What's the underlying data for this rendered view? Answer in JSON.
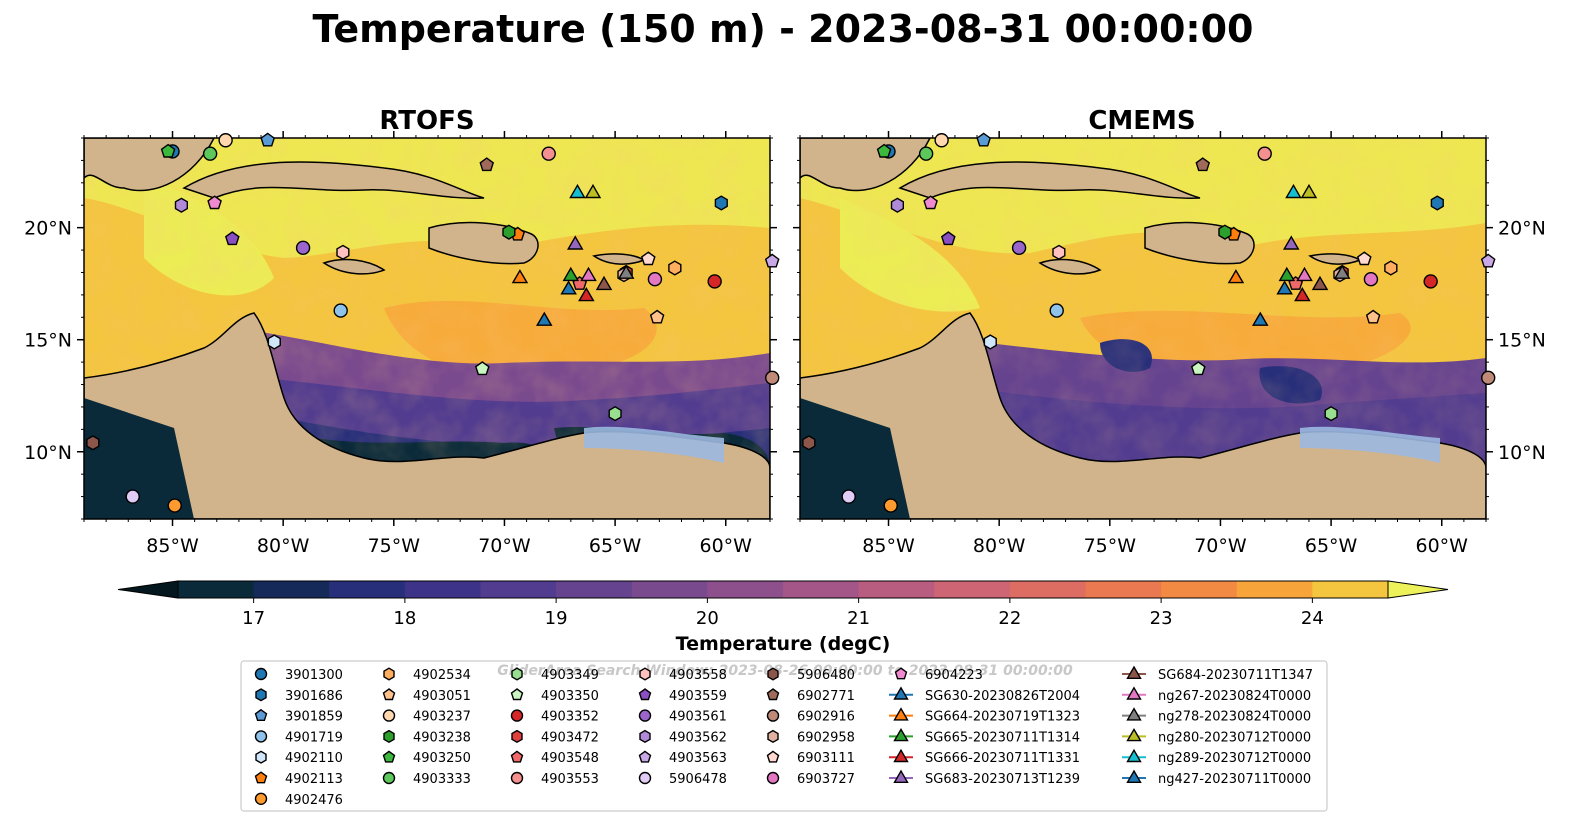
{
  "figure": {
    "title": "Temperature (150 m) - 2023-08-31 00:00:00",
    "watermark": "GliderArea Search Window: 2023-08-26 00:00:00 to 2023-08-31 00:00:00"
  },
  "panels": [
    {
      "title": "RTOFS",
      "left_axis_labels": true,
      "right_axis_labels": false
    },
    {
      "title": "CMEMS",
      "left_axis_labels": false,
      "right_axis_labels": true
    }
  ],
  "map_extent": {
    "lon": [
      -89,
      -58
    ],
    "lat": [
      7,
      24
    ]
  },
  "axes": {
    "lon_ticks": [
      {
        "lon": -85,
        "label": "85°W"
      },
      {
        "lon": -80,
        "label": "80°W"
      },
      {
        "lon": -75,
        "label": "75°W"
      },
      {
        "lon": -70,
        "label": "70°W"
      },
      {
        "lon": -65,
        "label": "65°W"
      },
      {
        "lon": -60,
        "label": "60°W"
      }
    ],
    "lat_ticks": [
      {
        "lat": 20,
        "label": "20°N"
      },
      {
        "lat": 15,
        "label": "15°N"
      },
      {
        "lat": 10,
        "label": "10°N"
      }
    ]
  },
  "colorbar": {
    "label": "Temperature (degC)",
    "min": 16.5,
    "max": 24.5,
    "step": 0.5,
    "ticks": [
      {
        "v": 17,
        "label": "17"
      },
      {
        "v": 18,
        "label": "18"
      },
      {
        "v": 19,
        "label": "19"
      },
      {
        "v": 20,
        "label": "20"
      },
      {
        "v": 21,
        "label": "21"
      },
      {
        "v": 22,
        "label": "22"
      },
      {
        "v": 23,
        "label": "23"
      },
      {
        "v": 24,
        "label": "24"
      }
    ],
    "colors": [
      "#0a2a3a",
      "#162a5a",
      "#282f7a",
      "#3d3489",
      "#523c8f",
      "#66438f",
      "#7a4a8e",
      "#8e508c",
      "#a45688",
      "#b95d80",
      "#cd6575",
      "#dd6c63",
      "#ea7850",
      "#f38a43",
      "#f7a43a",
      "#f4c53e",
      "#ecec55"
    ],
    "extend_colors": {
      "low": "#04171f",
      "high": "#eef25a"
    }
  },
  "colors": {
    "land": "#d2b48c",
    "shelf_water": "#9bb8e0",
    "deep_fill": "#0a2a3a",
    "warm_fill": "#f7a43a",
    "hot_fill": "#ecec55",
    "mid_fill": "#66438f"
  },
  "legend": {
    "columns": [
      [
        {
          "label": "3901300",
          "marker": "circle",
          "color": "#1f77b4"
        },
        {
          "label": "3901686",
          "marker": "hexagon",
          "color": "#1f77b4"
        },
        {
          "label": "3901859",
          "marker": "pentagon",
          "color": "#5b9bd5"
        },
        {
          "label": "4901719",
          "marker": "circle",
          "color": "#8fc3ea"
        },
        {
          "label": "4902110",
          "marker": "hexagon",
          "color": "#cfe6fb"
        },
        {
          "label": "4902113",
          "marker": "pentagon",
          "color": "#ff7f0e"
        },
        {
          "label": "4902476",
          "marker": "circle",
          "color": "#ff9a2e"
        }
      ],
      [
        {
          "label": "4902534",
          "marker": "hexagon",
          "color": "#ffad5e"
        },
        {
          "label": "4903051",
          "marker": "pentagon",
          "color": "#ffc08a"
        },
        {
          "label": "4903237",
          "marker": "circle",
          "color": "#ffd8b0"
        },
        {
          "label": "4903238",
          "marker": "hexagon",
          "color": "#2ca02c"
        },
        {
          "label": "4903250",
          "marker": "pentagon",
          "color": "#3cb83c"
        },
        {
          "label": "4903333",
          "marker": "circle",
          "color": "#5cc85c"
        }
      ],
      [
        {
          "label": "4903349",
          "marker": "hexagon",
          "color": "#98e090"
        },
        {
          "label": "4903350",
          "marker": "pentagon",
          "color": "#c8f5c0"
        },
        {
          "label": "4903352",
          "marker": "circle",
          "color": "#d62728"
        },
        {
          "label": "4903472",
          "marker": "hexagon",
          "color": "#e04040"
        },
        {
          "label": "4903548",
          "marker": "pentagon",
          "color": "#f06868"
        },
        {
          "label": "4903553",
          "marker": "circle",
          "color": "#f59090"
        }
      ],
      [
        {
          "label": "4903558",
          "marker": "hexagon",
          "color": "#ffc0c0"
        },
        {
          "label": "4903559",
          "marker": "pentagon",
          "color": "#8a4fc0"
        },
        {
          "label": "4903561",
          "marker": "circle",
          "color": "#9a66cc"
        },
        {
          "label": "4903562",
          "marker": "hexagon",
          "color": "#b08ad8"
        },
        {
          "label": "4903563",
          "marker": "pentagon",
          "color": "#c8a8e6"
        },
        {
          "label": "5906478",
          "marker": "circle",
          "color": "#e0ccf5"
        }
      ],
      [
        {
          "label": "5906480",
          "marker": "hexagon",
          "color": "#8c564b"
        },
        {
          "label": "6902771",
          "marker": "pentagon",
          "color": "#a06a5a"
        },
        {
          "label": "6902916",
          "marker": "circle",
          "color": "#c08a78"
        },
        {
          "label": "6902958",
          "marker": "hexagon",
          "color": "#e0b0a0"
        },
        {
          "label": "6903111",
          "marker": "pentagon",
          "color": "#ffd8d0"
        },
        {
          "label": "6903727",
          "marker": "circle",
          "color": "#e377c2"
        }
      ],
      [
        {
          "label": "6904223",
          "marker": "pentagon",
          "color": "#f08ad0"
        },
        {
          "label": "SG630-20230826T2004",
          "marker": "triangle-line",
          "color": "#1f77b4"
        },
        {
          "label": "SG664-20230719T1323",
          "marker": "triangle-line",
          "color": "#ff7f0e"
        },
        {
          "label": "SG665-20230711T1314",
          "marker": "triangle-line",
          "color": "#2ca02c"
        },
        {
          "label": "SG666-20230711T1331",
          "marker": "triangle-line",
          "color": "#d62728"
        },
        {
          "label": "SG683-20230713T1239",
          "marker": "triangle-line",
          "color": "#9467bd"
        }
      ],
      [
        {
          "label": "SG684-20230711T1347",
          "marker": "triangle-line",
          "color": "#8c564b"
        },
        {
          "label": "ng267-20230824T0000",
          "marker": "triangle-line",
          "color": "#e377c2"
        },
        {
          "label": "ng278-20230824T0000",
          "marker": "triangle-line",
          "color": "#7f7f7f"
        },
        {
          "label": "ng280-20230712T0000",
          "marker": "triangle-line",
          "color": "#bcbd22"
        },
        {
          "label": "ng289-20230712T0000",
          "marker": "triangle-line",
          "color": "#17becf"
        },
        {
          "label": "ng427-20230711T0000",
          "marker": "triangle-line",
          "color": "#1f77b4"
        }
      ]
    ]
  },
  "platforms": [
    {
      "id": "3901300",
      "lon": -85.0,
      "lat": 23.4
    },
    {
      "id": "3901686",
      "lon": -60.2,
      "lat": 21.1
    },
    {
      "id": "3901859",
      "lon": -80.7,
      "lat": 23.9
    },
    {
      "id": "4901719",
      "lon": -77.4,
      "lat": 16.3
    },
    {
      "id": "4902110",
      "lon": -80.4,
      "lat": 14.9
    },
    {
      "id": "4902113",
      "lon": -69.4,
      "lat": 19.7
    },
    {
      "id": "4902476",
      "lon": -84.9,
      "lat": 7.6
    },
    {
      "id": "4902534",
      "lon": -62.3,
      "lat": 18.2
    },
    {
      "id": "4903051",
      "lon": -63.1,
      "lat": 16.0
    },
    {
      "id": "4903237",
      "lon": -82.6,
      "lat": 23.9
    },
    {
      "id": "4903238",
      "lon": -69.8,
      "lat": 19.8
    },
    {
      "id": "4903250",
      "lon": -85.2,
      "lat": 23.4
    },
    {
      "id": "4903333",
      "lon": -83.3,
      "lat": 23.3
    },
    {
      "id": "4903349",
      "lon": -65.0,
      "lat": 11.7
    },
    {
      "id": "4903350",
      "lon": -71.0,
      "lat": 13.7
    },
    {
      "id": "4903352",
      "lon": -60.5,
      "lat": 17.6
    },
    {
      "id": "4903472",
      "lon": -64.5,
      "lat": 18.0
    },
    {
      "id": "4903548",
      "lon": -66.6,
      "lat": 17.5
    },
    {
      "id": "4903553",
      "lon": -68.0,
      "lat": 23.3
    },
    {
      "id": "4903558",
      "lon": -77.3,
      "lat": 18.9
    },
    {
      "id": "4903559",
      "lon": -82.3,
      "lat": 19.5
    },
    {
      "id": "4903561",
      "lon": -79.1,
      "lat": 19.1
    },
    {
      "id": "4903562",
      "lon": -84.6,
      "lat": 21.0
    },
    {
      "id": "4903563",
      "lon": -57.9,
      "lat": 18.5
    },
    {
      "id": "5906478",
      "lon": -86.8,
      "lat": 8.0
    },
    {
      "id": "5906480",
      "lon": -88.6,
      "lat": 10.4
    },
    {
      "id": "6902771",
      "lon": -70.8,
      "lat": 22.8
    },
    {
      "id": "6902916",
      "lon": -57.9,
      "lat": 13.3
    },
    {
      "id": "6902958",
      "lon": -64.6,
      "lat": 17.9
    },
    {
      "id": "6903111",
      "lon": -63.5,
      "lat": 18.6
    },
    {
      "id": "6903727",
      "lon": -63.2,
      "lat": 17.7
    },
    {
      "id": "6904223",
      "lon": -83.1,
      "lat": 21.1
    },
    {
      "id": "SG630-20230826T2004",
      "lon": -68.2,
      "lat": 15.9
    },
    {
      "id": "SG664-20230719T1323",
      "lon": -69.3,
      "lat": 17.8
    },
    {
      "id": "SG665-20230711T1314",
      "lon": -67.0,
      "lat": 17.9
    },
    {
      "id": "SG666-20230711T1331",
      "lon": -66.3,
      "lat": 17.0
    },
    {
      "id": "SG683-20230713T1239",
      "lon": -66.8,
      "lat": 19.3
    },
    {
      "id": "SG684-20230711T1347",
      "lon": -65.5,
      "lat": 17.5
    },
    {
      "id": "ng267-20230824T0000",
      "lon": -66.2,
      "lat": 17.9
    },
    {
      "id": "ng278-20230824T0000",
      "lon": -64.5,
      "lat": 18.0
    },
    {
      "id": "ng280-20230712T0000",
      "lon": -66.0,
      "lat": 21.6
    },
    {
      "id": "ng289-20230712T0000",
      "lon": -66.7,
      "lat": 21.6
    },
    {
      "id": "ng427-20230711T0000",
      "lon": -67.1,
      "lat": 17.3
    }
  ]
}
